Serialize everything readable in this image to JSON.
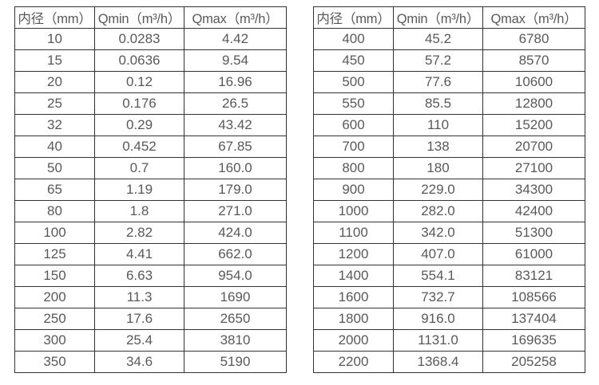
{
  "styles": {
    "border_color": "#333333",
    "text_color": "#595959",
    "background_color": "#ffffff"
  },
  "chart_data": [
    {
      "type": "table",
      "title": "",
      "columns": [
        "内径（mm）",
        "Qmin（m³/h）",
        "Qmax（m³/h）"
      ],
      "rows": [
        [
          "10",
          "0.0283",
          "4.42"
        ],
        [
          "15",
          "0.0636",
          "9.54"
        ],
        [
          "20",
          "0.12",
          "16.96"
        ],
        [
          "25",
          "0.176",
          "26.5"
        ],
        [
          "32",
          "0.29",
          "43.42"
        ],
        [
          "40",
          "0.452",
          "67.85"
        ],
        [
          "50",
          "0.7",
          "160.0"
        ],
        [
          "65",
          "1.19",
          "179.0"
        ],
        [
          "80",
          "1.8",
          "271.0"
        ],
        [
          "100",
          "2.82",
          "424.0"
        ],
        [
          "125",
          "4.41",
          "662.0"
        ],
        [
          "150",
          "6.63",
          "954.0"
        ],
        [
          "200",
          "11.3",
          "1690"
        ],
        [
          "250",
          "17.6",
          "2650"
        ],
        [
          "300",
          "25.4",
          "3810"
        ],
        [
          "350",
          "34.6",
          "5190"
        ]
      ]
    },
    {
      "type": "table",
      "title": "",
      "columns": [
        "内径（mm）",
        "Qmin（m³/h）",
        "Qmax（m³/h）"
      ],
      "rows": [
        [
          "400",
          "45.2",
          "6780"
        ],
        [
          "450",
          "57.2",
          "8570"
        ],
        [
          "500",
          "77.6",
          "10600"
        ],
        [
          "550",
          "85.5",
          "12800"
        ],
        [
          "600",
          "110",
          "15200"
        ],
        [
          "700",
          "138",
          "20700"
        ],
        [
          "800",
          "180",
          "27100"
        ],
        [
          "900",
          "229.0",
          "34300"
        ],
        [
          "1000",
          "282.0",
          "42400"
        ],
        [
          "1100",
          "342.0",
          "51300"
        ],
        [
          "1200",
          "407.0",
          "61000"
        ],
        [
          "1400",
          "554.1",
          "83121"
        ],
        [
          "1600",
          "732.7",
          "108566"
        ],
        [
          "1800",
          "916.0",
          "137404"
        ],
        [
          "2000",
          "1131.0",
          "169635"
        ],
        [
          "2200",
          "1368.4",
          "205258"
        ]
      ]
    }
  ]
}
